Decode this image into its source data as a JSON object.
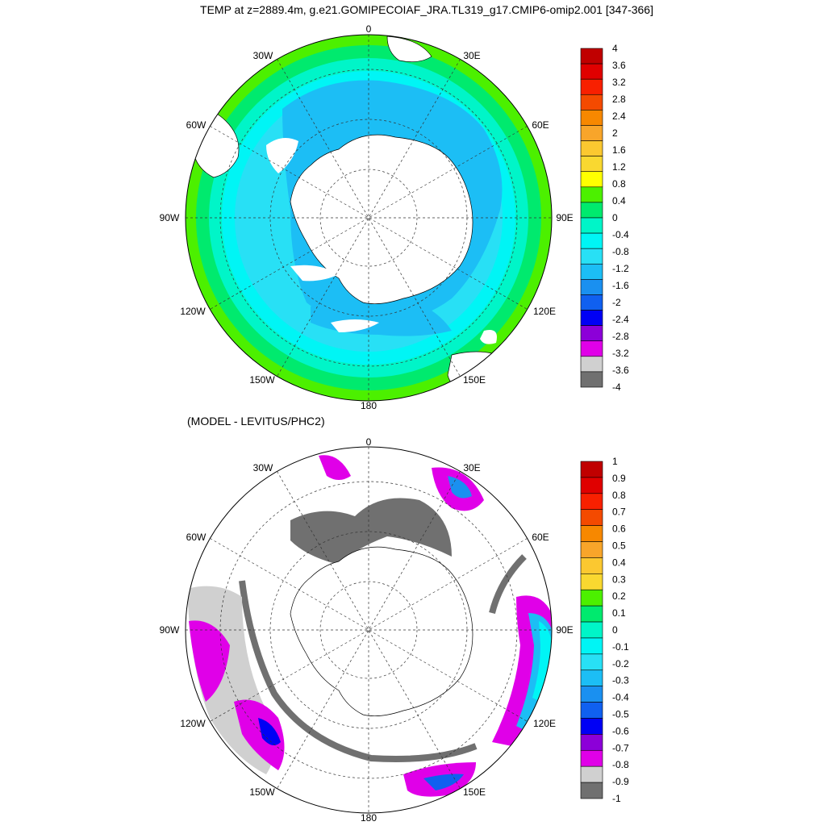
{
  "top_panel": {
    "title": "TEMP at z=2889.4m, g.e21.GOMIPECOIAF_JRA.TL319_g17.CMIP6-omip2.001 [347-366]",
    "lon_labels": [
      "0",
      "30E",
      "60E",
      "90E",
      "120E",
      "150E",
      "180",
      "150W",
      "120W",
      "90W",
      "60W",
      "30W"
    ],
    "colorbar_labels": [
      "4",
      "3.6",
      "3.2",
      "2.8",
      "2.4",
      "2",
      "1.6",
      "1.2",
      "0.8",
      "0.4",
      "0",
      "-0.4",
      "-0.8",
      "-1.2",
      "-1.6",
      "-2",
      "-2.4",
      "-2.8",
      "-3.2",
      "-3.6",
      "-4"
    ],
    "colorbar_colors": [
      "#c00000",
      "#e00000",
      "#f82000",
      "#f44a00",
      "#f78800",
      "#f8a52a",
      "#fbc830",
      "#f9d830",
      "#ffff00",
      "#4cf000",
      "#00ea6e",
      "#00f5c8",
      "#00f5f5",
      "#28e0f5",
      "#1cbef5",
      "#1a90f0",
      "#1060f0",
      "#0000f5",
      "#8c00d8",
      "#e000e8",
      "#d0d0d0",
      "#707070"
    ]
  },
  "bottom_panel": {
    "title": "(MODEL - LEVITUS/PHC2)",
    "lon_labels": [
      "0",
      "30E",
      "60E",
      "90E",
      "120E",
      "150E",
      "180",
      "150W",
      "120W",
      "90W",
      "60W",
      "30W"
    ],
    "colorbar_labels": [
      "1",
      "0.9",
      "0.8",
      "0.7",
      "0.6",
      "0.5",
      "0.4",
      "0.3",
      "0.2",
      "0.1",
      "0",
      "-0.1",
      "-0.2",
      "-0.3",
      "-0.4",
      "-0.5",
      "-0.6",
      "-0.7",
      "-0.8",
      "-0.9",
      "-1"
    ],
    "colorbar_colors": [
      "#c00000",
      "#e00000",
      "#f82000",
      "#f44a00",
      "#f78800",
      "#f8a52a",
      "#fbc830",
      "#f9d830",
      "#4cf000",
      "#00ea6e",
      "#00f5c8",
      "#00f5f5",
      "#28e0f5",
      "#1cbef5",
      "#1a90f0",
      "#1060f0",
      "#0000f5",
      "#8c00d8",
      "#e000e8",
      "#d0d0d0",
      "#707070"
    ]
  }
}
